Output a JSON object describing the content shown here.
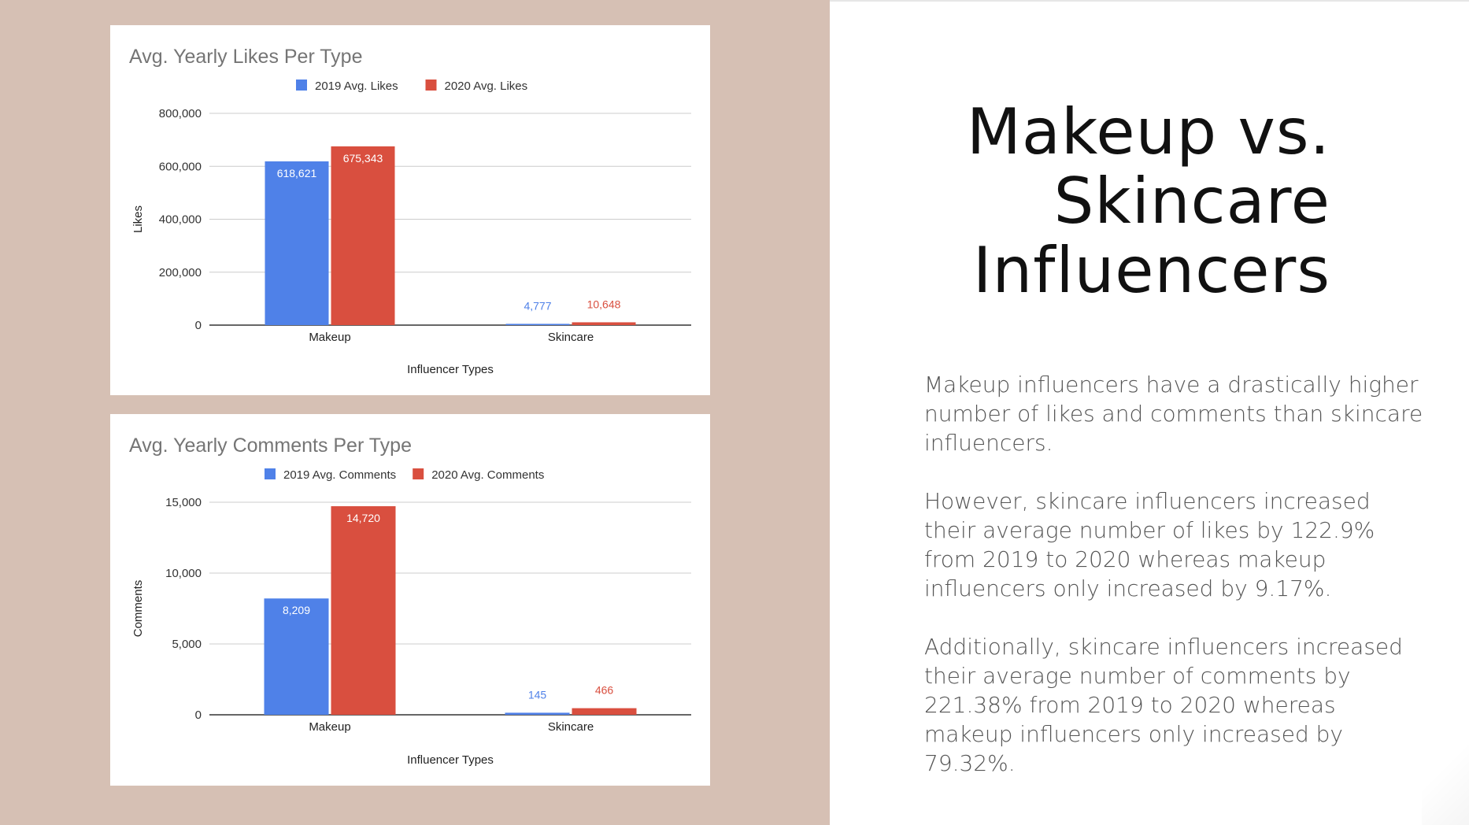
{
  "slide": {
    "title_lines": [
      "Makeup vs.",
      "Skincare",
      "Influencers"
    ],
    "paragraphs": [
      "Makeup influencers have a drastically higher number of likes and comments than skincare influencers.",
      "However, skincare influencers increased their average number of likes by 122.9% from 2019 to 2020 whereas makeup influencers only increased by 9.17%.",
      "Additionally, skincare influencers increased their average number of comments by 221.38% from 2019 to 2020 whereas makeup influencers only increased by 79.32%."
    ],
    "left_bg_color": "#d6c0b4"
  },
  "chart_data": [
    {
      "type": "bar",
      "title": "Avg. Yearly Likes Per Type",
      "xlabel": "Influencer Types",
      "ylabel": "Likes",
      "categories": [
        "Makeup",
        "Skincare"
      ],
      "ylim": [
        0,
        800000
      ],
      "yticks": [
        0,
        200000,
        400000,
        600000,
        800000
      ],
      "ytick_labels": [
        "0",
        "200,000",
        "400,000",
        "600,000",
        "800,000"
      ],
      "grid": true,
      "legend_position": "top",
      "series": [
        {
          "name": "2019 Avg. Likes",
          "color": "#4f81e8",
          "values": [
            618621,
            4777
          ],
          "labels": [
            "618,621",
            "4,777"
          ]
        },
        {
          "name": "2020 Avg. Likes",
          "color": "#d94f3f",
          "values": [
            675343,
            10648
          ],
          "labels": [
            "675,343",
            "10,648"
          ]
        }
      ]
    },
    {
      "type": "bar",
      "title": "Avg. Yearly Comments Per Type",
      "xlabel": "Influencer Types",
      "ylabel": "Comments",
      "categories": [
        "Makeup",
        "Skincare"
      ],
      "ylim": [
        0,
        15000
      ],
      "yticks": [
        0,
        5000,
        10000,
        15000
      ],
      "ytick_labels": [
        "0",
        "5,000",
        "10,000",
        "15,000"
      ],
      "grid": true,
      "legend_position": "top",
      "series": [
        {
          "name": "2019 Avg. Comments",
          "color": "#4f81e8",
          "values": [
            8209,
            145
          ],
          "labels": [
            "8,209",
            "145"
          ]
        },
        {
          "name": "2020 Avg. Comments",
          "color": "#d94f3f",
          "values": [
            14720,
            466
          ],
          "labels": [
            "14,720",
            "466"
          ]
        }
      ]
    }
  ]
}
